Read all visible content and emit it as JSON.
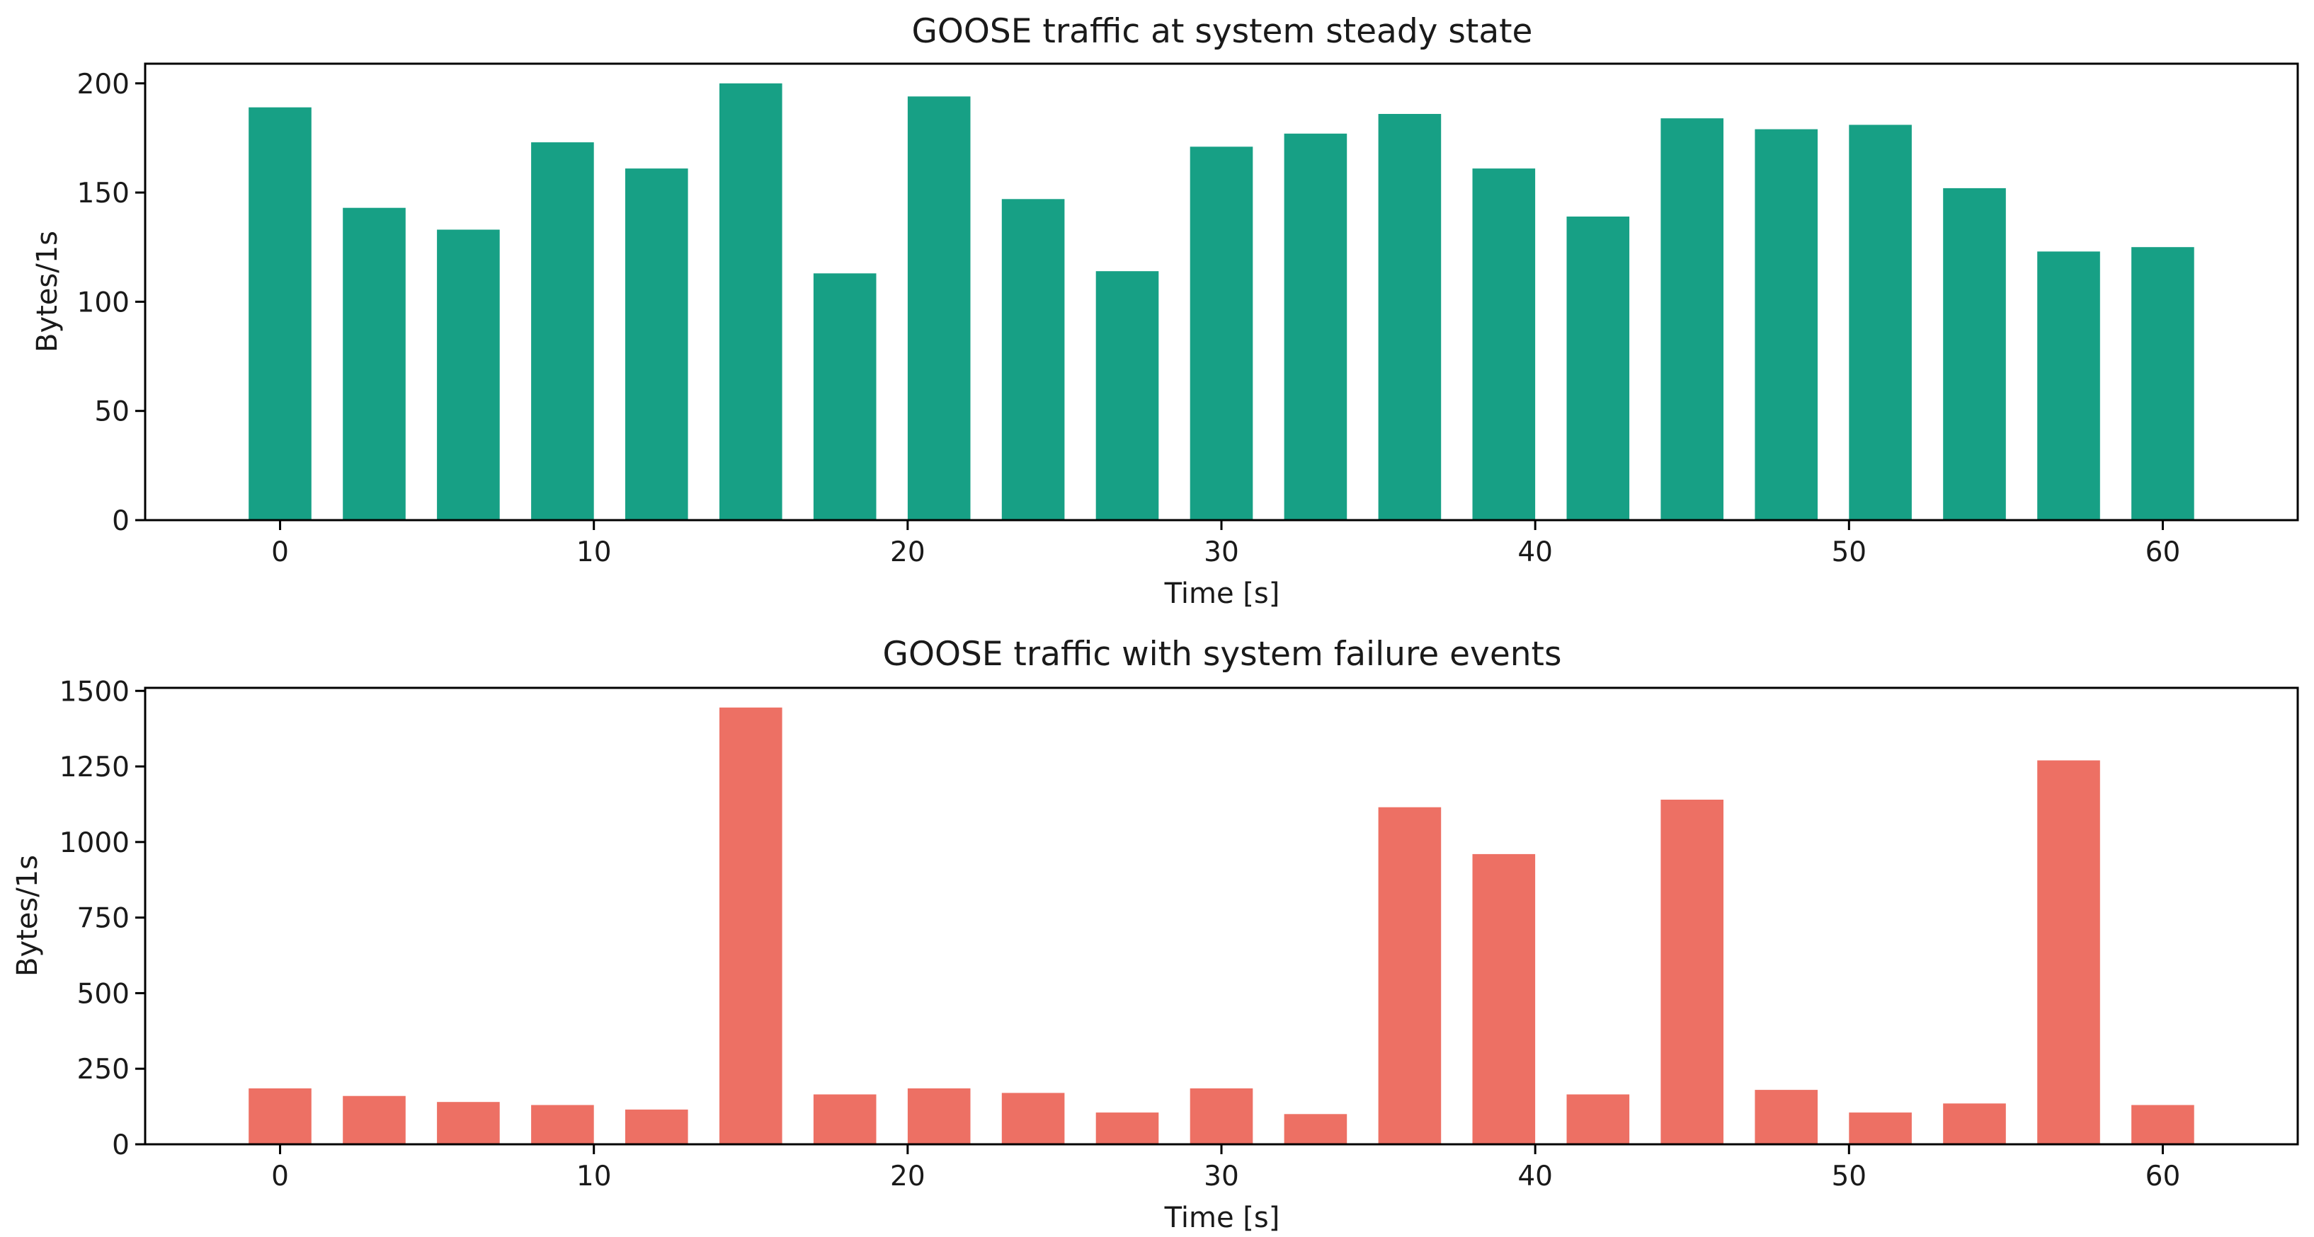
{
  "chart_data": [
    {
      "type": "bar",
      "title": "GOOSE traffic at system steady state",
      "xlabel": "Time [s]",
      "ylabel": "Bytes/1s",
      "color": "#17a085",
      "bar_width": 2.0,
      "xlim": [
        -4.3,
        64.3
      ],
      "ylim": [
        0,
        209
      ],
      "xticks": [
        0,
        10,
        20,
        30,
        40,
        50,
        60
      ],
      "yticks": [
        0,
        50,
        100,
        150,
        200
      ],
      "x": [
        0,
        3,
        6,
        9,
        12,
        15,
        18,
        21,
        24,
        27,
        30,
        33,
        36,
        39,
        42,
        45,
        48,
        51,
        54,
        57,
        60
      ],
      "values": [
        189,
        143,
        133,
        173,
        161,
        200,
        113,
        194,
        147,
        114,
        171,
        177,
        186,
        161,
        139,
        184,
        179,
        181,
        152,
        123,
        125
      ]
    },
    {
      "type": "bar",
      "title": "GOOSE traffic with system failure events",
      "xlabel": "Time [s]",
      "ylabel": "Bytes/1s",
      "color": "#ed7064",
      "bar_width": 2.0,
      "xlim": [
        -4.3,
        64.3
      ],
      "ylim": [
        0,
        1510
      ],
      "xticks": [
        0,
        10,
        20,
        30,
        40,
        50,
        60
      ],
      "yticks": [
        0,
        250,
        500,
        750,
        1000,
        1250,
        1500
      ],
      "x": [
        0,
        3,
        6,
        9,
        12,
        15,
        18,
        21,
        24,
        27,
        30,
        33,
        36,
        39,
        42,
        45,
        48,
        51,
        54,
        57,
        60
      ],
      "values": [
        185,
        160,
        140,
        130,
        115,
        1445,
        165,
        185,
        170,
        105,
        185,
        100,
        1115,
        960,
        165,
        1140,
        180,
        105,
        135,
        1270,
        130
      ]
    }
  ]
}
